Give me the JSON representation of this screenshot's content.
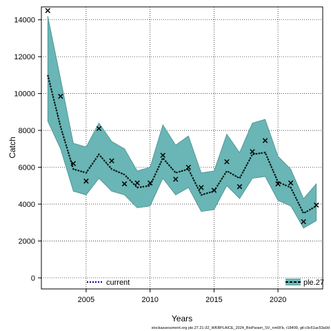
{
  "chart_data": {
    "type": "line",
    "xlabel": "Years",
    "ylabel": "Catch",
    "xlim": [
      2001.5,
      2023.5
    ],
    "ylim": [
      -600,
      14700
    ],
    "x_ticks": [
      2005,
      2010,
      2015,
      2020
    ],
    "y_ticks": [
      0,
      2000,
      4000,
      6000,
      8000,
      10000,
      12000,
      14000
    ],
    "grid": true,
    "legend_placement": "bottom",
    "x": [
      2002,
      2003,
      2004,
      2005,
      2006,
      2007,
      2008,
      2009,
      2010,
      2011,
      2012,
      2013,
      2014,
      2015,
      2016,
      2017,
      2018,
      2019,
      2020,
      2021,
      2022,
      2023
    ],
    "series": [
      {
        "name": "current",
        "style": "dotted",
        "values": [
          11000,
          8200,
          5900,
          5700,
          6700,
          5900,
          5600,
          4900,
          5000,
          6500,
          5700,
          5900,
          4500,
          4700,
          5800,
          5400,
          6700,
          6800,
          5200,
          4900,
          3500,
          3900
        ]
      },
      {
        "name": "ple.27",
        "style": "dashed",
        "values": [
          11000,
          8200,
          5900,
          5700,
          6700,
          5900,
          5600,
          4900,
          5000,
          6500,
          5700,
          5900,
          4500,
          4700,
          5800,
          5400,
          6700,
          6800,
          5200,
          4900,
          3500,
          3900
        ]
      }
    ],
    "band": {
      "upper": [
        14200,
        10800,
        7300,
        7100,
        8400,
        7400,
        7000,
        5800,
        6000,
        8300,
        7200,
        7700,
        5700,
        5800,
        7800,
        6800,
        8400,
        8600,
        6600,
        5900,
        4300,
        5100
      ],
      "lower": [
        8500,
        7000,
        4700,
        4500,
        5400,
        4700,
        4500,
        3800,
        3900,
        5400,
        4500,
        4900,
        3600,
        3700,
        5000,
        4300,
        5400,
        5500,
        4200,
        3900,
        2700,
        3100
      ]
    },
    "observations": [
      14500,
      9850,
      6200,
      5250,
      8100,
      6350,
      5100,
      5150,
      5150,
      6650,
      5350,
      6000,
      4900,
      4750,
      6300,
      4950,
      6850,
      7450,
      5100,
      5150,
      3050,
      3950
    ]
  },
  "colors": {
    "band_fill": "#6ab5b5",
    "band_edge": "#4a8f8f",
    "line_current": "#000000",
    "line_ple27": "#0a2a2a",
    "legend_current_swatch": "#00008b"
  },
  "footnote": "stockassessment.org ple.27.21-32_WKBPLAICE_2024_BioParam_SV_nm0Fb, r18499, git:c9c61ac53a0d"
}
